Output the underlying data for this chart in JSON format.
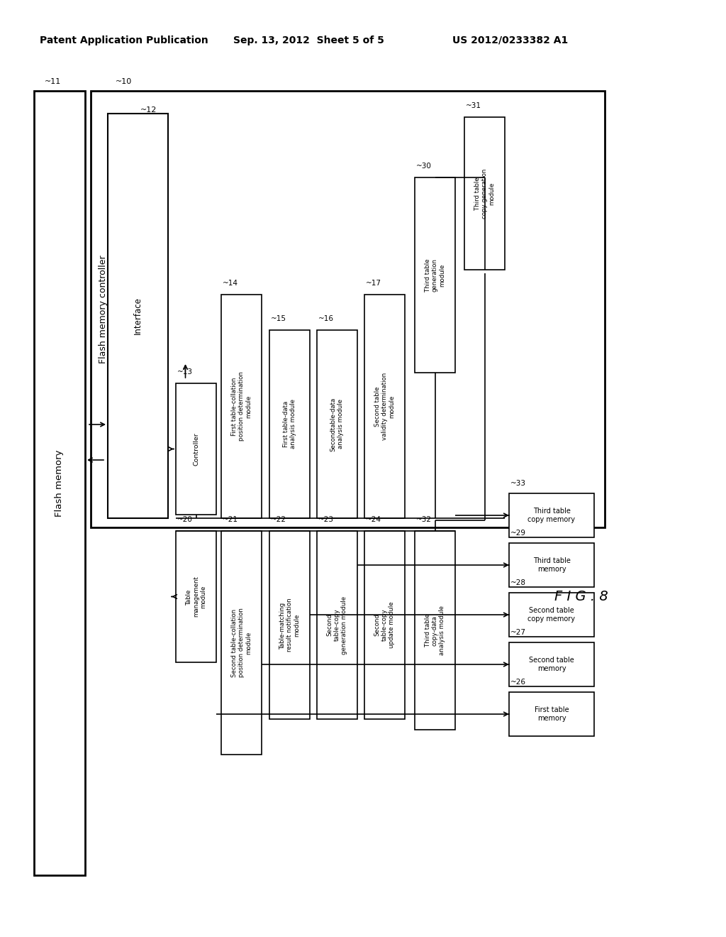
{
  "header_left": "Patent Application Publication",
  "header_mid": "Sep. 13, 2012  Sheet 5 of 5",
  "header_right": "US 2012/0233382 A1",
  "fig_label": "F I G . 8",
  "bg": "#ffffff"
}
